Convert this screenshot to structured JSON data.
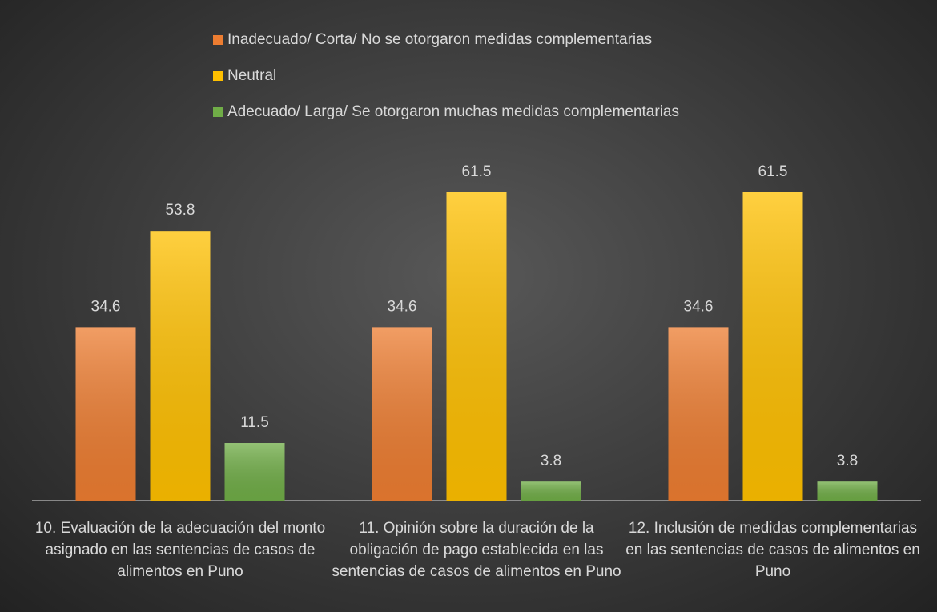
{
  "chart_data": {
    "type": "bar",
    "categories": [
      "10. Evaluación de la adecuación del monto asignado en las sentencias de casos de alimentos en Puno",
      "11. Opinión sobre la duración de la obligación de pago establecida en las sentencias de casos de alimentos en Puno",
      "12. Inclusión de medidas complementarias en las sentencias de casos de alimentos en Puno"
    ],
    "series": [
      {
        "name": "Inadecuado/ Corta/ No se otorgaron medidas complementarias",
        "color": "#ed7d31",
        "values": [
          34.6,
          34.6,
          34.6
        ]
      },
      {
        "name": "Neutral",
        "color": "#ffc000",
        "values": [
          53.8,
          61.5,
          61.5
        ]
      },
      {
        "name": "Adecuado/ Larga/ Se otorgaron muchas medidas complementarias",
        "color": "#70ad47",
        "values": [
          11.5,
          3.8,
          3.8
        ]
      }
    ],
    "legend": "top"
  }
}
